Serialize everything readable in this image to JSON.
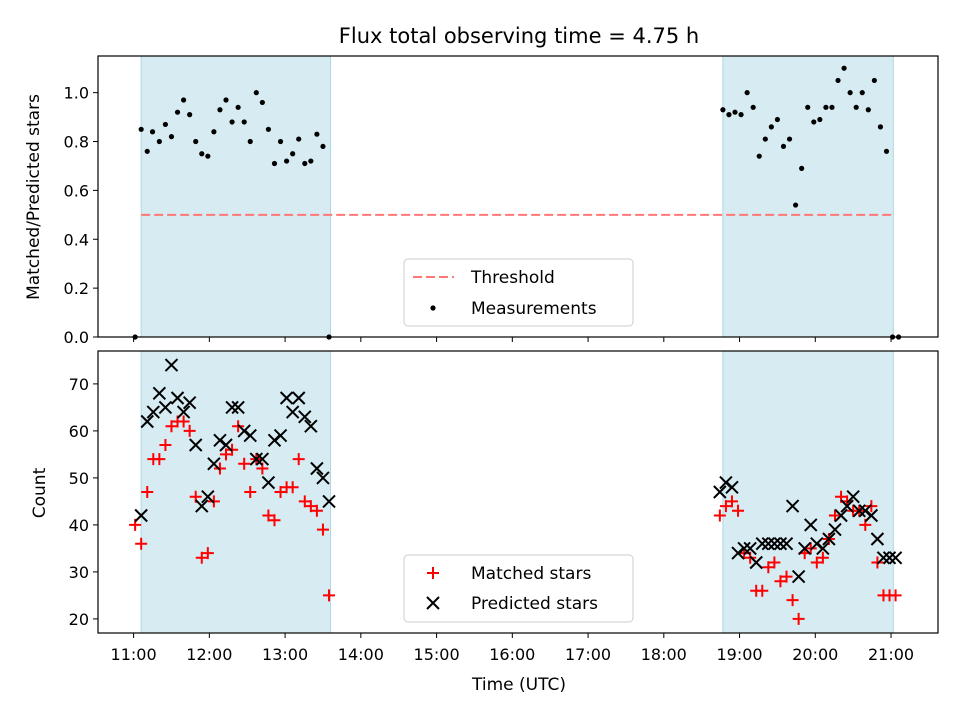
{
  "title": "Flux total observing time = 4.75 h",
  "chart_data": [
    {
      "type": "scatter",
      "ylabel": "Matched/Predicted stars",
      "xlim": [
        10.53,
        21.62
      ],
      "ylim": [
        0,
        1.15
      ],
      "yticks": [
        0.0,
        0.2,
        0.4,
        0.6,
        0.8,
        1.0
      ],
      "ytick_labels": [
        "0.0",
        "0.2",
        "0.4",
        "0.6",
        "0.8",
        "1.0"
      ],
      "shaded_intervals": [
        [
          11.1,
          13.6
        ],
        [
          18.78,
          21.03
        ]
      ],
      "threshold": {
        "name": "Threshold",
        "value": 0.5,
        "x_range": [
          11.1,
          21.03
        ],
        "color": "#ff7777"
      },
      "series": [
        {
          "name": "Measurements",
          "color": "#000000",
          "x": [
            11.02,
            11.1,
            11.18,
            11.25,
            11.34,
            11.42,
            11.5,
            11.58,
            11.66,
            11.74,
            11.82,
            11.9,
            11.98,
            12.06,
            12.14,
            12.22,
            12.3,
            12.38,
            12.46,
            12.54,
            12.62,
            12.7,
            12.78,
            12.86,
            12.94,
            13.02,
            13.1,
            13.18,
            13.26,
            13.34,
            13.42,
            13.5,
            13.58,
            18.78,
            18.86,
            18.94,
            19.02,
            19.1,
            19.18,
            19.26,
            19.34,
            19.42,
            19.5,
            19.58,
            19.66,
            19.74,
            19.82,
            19.9,
            19.98,
            20.06,
            20.14,
            20.22,
            20.3,
            20.38,
            20.46,
            20.54,
            20.62,
            20.7,
            20.78,
            20.86,
            20.94,
            21.02,
            21.1
          ],
          "y": [
            0.0,
            0.85,
            0.76,
            0.84,
            0.8,
            0.87,
            0.82,
            0.92,
            0.97,
            0.91,
            0.8,
            0.75,
            0.74,
            0.84,
            0.93,
            0.97,
            0.88,
            0.94,
            0.88,
            0.8,
            1.0,
            0.96,
            0.85,
            0.71,
            0.8,
            0.72,
            0.75,
            0.81,
            0.71,
            0.72,
            0.83,
            0.78,
            0.0,
            0.93,
            0.91,
            0.92,
            0.91,
            1.0,
            0.94,
            0.74,
            0.81,
            0.86,
            0.89,
            0.78,
            0.81,
            0.54,
            0.69,
            0.94,
            0.88,
            0.89,
            0.94,
            0.94,
            1.05,
            1.1,
            1.0,
            0.94,
            1.0,
            0.93,
            1.05,
            0.86,
            0.76,
            0.0,
            0.0
          ]
        }
      ],
      "legend": {
        "location": "lower center",
        "entries": [
          "Threshold",
          "Measurements"
        ]
      }
    },
    {
      "type": "scatter",
      "xlabel": "Time (UTC)",
      "ylabel": "Count",
      "xlim": [
        10.53,
        21.62
      ],
      "ylim": [
        17,
        77
      ],
      "xticks": [
        11,
        12,
        13,
        14,
        15,
        16,
        17,
        18,
        19,
        20,
        21
      ],
      "xtick_labels": [
        "11:00",
        "12:00",
        "13:00",
        "14:00",
        "15:00",
        "16:00",
        "17:00",
        "18:00",
        "19:00",
        "20:00",
        "21:00"
      ],
      "yticks": [
        20,
        30,
        40,
        50,
        60,
        70
      ],
      "ytick_labels": [
        "20",
        "30",
        "40",
        "50",
        "60",
        "70"
      ],
      "shaded_intervals": [
        [
          11.1,
          13.6
        ],
        [
          18.78,
          21.03
        ]
      ],
      "series": [
        {
          "name": "Matched stars",
          "marker": "plus",
          "color": "#ff0000",
          "x": [
            11.02,
            11.1,
            11.18,
            11.26,
            11.34,
            11.42,
            11.5,
            11.58,
            11.66,
            11.74,
            11.82,
            11.9,
            11.98,
            12.06,
            12.14,
            12.22,
            12.3,
            12.38,
            12.46,
            12.54,
            12.62,
            12.7,
            12.78,
            12.86,
            12.94,
            13.02,
            13.1,
            13.18,
            13.26,
            13.34,
            13.42,
            13.5,
            13.58,
            18.74,
            18.82,
            18.9,
            18.98,
            19.06,
            19.14,
            19.22,
            19.3,
            19.38,
            19.46,
            19.54,
            19.62,
            19.7,
            19.78,
            19.86,
            19.94,
            20.02,
            20.1,
            20.18,
            20.26,
            20.34,
            20.42,
            20.5,
            20.58,
            20.66,
            20.74,
            20.82,
            20.9,
            20.98,
            21.06
          ],
          "y": [
            40,
            36,
            47,
            54,
            54,
            57,
            61,
            62,
            62,
            60,
            46,
            33,
            34,
            45,
            52,
            55,
            56,
            61,
            53,
            47,
            54,
            52,
            42,
            41,
            47,
            48,
            48,
            54,
            45,
            44,
            43,
            39,
            25,
            42,
            44,
            45,
            43,
            34,
            33,
            26,
            26,
            31,
            32,
            28,
            29,
            24,
            20,
            34,
            35,
            32,
            33,
            37,
            42,
            46,
            45,
            43,
            43,
            40,
            44,
            32,
            25,
            25,
            25
          ]
        },
        {
          "name": "Predicted stars",
          "marker": "x",
          "color": "#000000",
          "x": [
            11.1,
            11.18,
            11.26,
            11.34,
            11.42,
            11.5,
            11.58,
            11.66,
            11.74,
            11.82,
            11.9,
            11.98,
            12.06,
            12.14,
            12.22,
            12.3,
            12.38,
            12.46,
            12.54,
            12.62,
            12.7,
            12.78,
            12.86,
            12.94,
            13.02,
            13.1,
            13.18,
            13.26,
            13.34,
            13.42,
            13.5,
            13.58,
            18.74,
            18.82,
            18.9,
            18.98,
            19.06,
            19.14,
            19.22,
            19.3,
            19.38,
            19.46,
            19.54,
            19.62,
            19.7,
            19.78,
            19.86,
            19.94,
            20.02,
            20.1,
            20.18,
            20.26,
            20.34,
            20.42,
            20.5,
            20.58,
            20.66,
            20.74,
            20.82,
            20.9,
            20.98,
            21.06
          ],
          "y": [
            42,
            62,
            64,
            68,
            65,
            74,
            67,
            64,
            66,
            57,
            44,
            46,
            53,
            58,
            57,
            65,
            65,
            60,
            59,
            54,
            54,
            49,
            58,
            59,
            67,
            64,
            67,
            63,
            61,
            52,
            50,
            45,
            47,
            49,
            48,
            34,
            35,
            35,
            32,
            36,
            36,
            36,
            36,
            36,
            44,
            29,
            35,
            40,
            36,
            35,
            37,
            39,
            42,
            44,
            46,
            43,
            43,
            42,
            37,
            33,
            33,
            33
          ]
        }
      ],
      "legend": {
        "location": "lower center",
        "entries": [
          "Matched stars",
          "Predicted stars"
        ]
      }
    }
  ]
}
